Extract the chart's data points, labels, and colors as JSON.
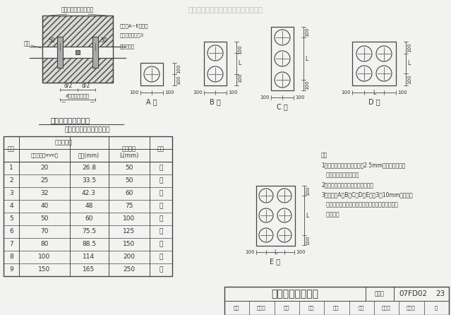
{
  "bg_color": "#f2f2f0",
  "paper_color": "#f2f2f0",
  "watermark_text": "本资料仅供内部使用，严禁用于商业。",
  "watermark_color": "#bbbbbb",
  "main_title": "穿墙管密闭肋示意图",
  "diagram_title": "热镀锌钢管和密闭肋尺寸表",
  "table_data": [
    [
      "1",
      "20",
      "26.8",
      "50",
      "－"
    ],
    [
      "2",
      "25",
      "33.5",
      "50",
      "－"
    ],
    [
      "3",
      "32",
      "42.3",
      "60",
      "－"
    ],
    [
      "4",
      "40",
      "48",
      "75",
      "－"
    ],
    [
      "5",
      "50",
      "60",
      "100",
      "－"
    ],
    [
      "6",
      "70",
      "75.5",
      "125",
      "－"
    ],
    [
      "7",
      "80",
      "88.5",
      "150",
      "－"
    ],
    [
      "8",
      "100",
      "114",
      "200",
      "－"
    ],
    [
      "9",
      "150",
      "165",
      "250",
      "－"
    ]
  ],
  "notes": [
    "注：",
    "1．穿墙管应采用壁厚不小于2.5mm的热镀锌钢管，",
    "   管道数量由设计确定。",
    "2．防护密闭穿墙管需另加抗力片。",
    "3．密闭肋A、B、C、D、E型为3～10mm厚的热镀",
    "   锌钢板，与热镀锌钢管及面焊接，同时应与结构钢",
    "   筋焊牢。"
  ],
  "bottom_title": "穿墙管密闭肋详图",
  "drawing_no_label": "图集号",
  "drawing_no": "07FD02",
  "bottom_row_labels": [
    "审核",
    "标准员",
    "校对",
    "罗洁",
    "宁花",
    "设计",
    "张红英",
    "张仁英",
    "页"
  ],
  "page_no": "23",
  "line_color": "#444444",
  "text_color": "#333333",
  "label_top": "临空墙、防护密闭门墙",
  "label_weld": "焊接",
  "label_rib1": "密闭肋A~E型见图",
  "label_rib2": "密闭肋材料见注3",
  "label_pipe": "热镀锌钢管",
  "type_labels": [
    "A 型",
    "B 型",
    "C 型",
    "D 型",
    "E 型"
  ]
}
